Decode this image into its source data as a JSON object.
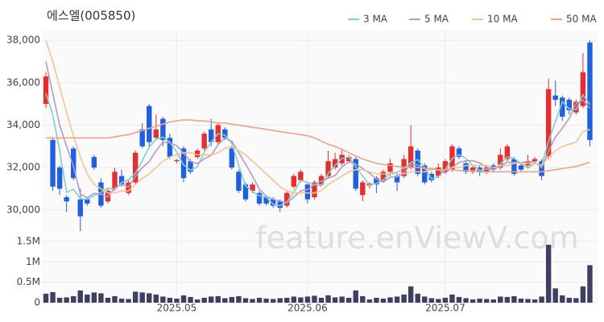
{
  "chart_data": {
    "type": "candlestick",
    "title": "에스엘(005850)",
    "watermark": "feature.enViewV.com",
    "categories": [
      null,
      null,
      null,
      null,
      null,
      null,
      null,
      null,
      null,
      null,
      null,
      null,
      null,
      null,
      null,
      null,
      null,
      null,
      null,
      "2025.05",
      null,
      null,
      null,
      null,
      null,
      null,
      null,
      null,
      null,
      null,
      null,
      null,
      null,
      null,
      null,
      null,
      null,
      null,
      "2025.06",
      null,
      null,
      null,
      null,
      null,
      null,
      null,
      null,
      null,
      null,
      null,
      null,
      null,
      null,
      null,
      null,
      null,
      null,
      null,
      "2025.07",
      null,
      null,
      null,
      null,
      null,
      null,
      null,
      null,
      null,
      null,
      null,
      null,
      null,
      null,
      null,
      null,
      null,
      null,
      null,
      null,
      null
    ],
    "open": [
      35000,
      33300,
      32000,
      30600,
      32900,
      30500,
      30500,
      32500,
      31300,
      30400,
      31000,
      31600,
      30800,
      31300,
      33800,
      34900,
      33400,
      34300,
      33400,
      32300,
      32900,
      32300,
      32500,
      32900,
      33800,
      33200,
      33800,
      32900,
      31800,
      31200,
      30900,
      30800,
      30600,
      30500,
      30400,
      30200,
      31100,
      31400,
      31200,
      30600,
      31200,
      31600,
      32000,
      32200,
      32300,
      32400,
      30700,
      31150,
      31500,
      31400,
      31800,
      31600,
      31600,
      32000,
      32800,
      32100,
      31700,
      31600,
      31800,
      31900,
      32900,
      32200,
      31800,
      32000,
      31800,
      32100,
      32000,
      32400,
      32400,
      32100,
      32100,
      32300,
      32300,
      32500,
      35400,
      35300,
      35200,
      34600,
      34900,
      37900
    ],
    "high": [
      36500,
      33400,
      32100,
      30700,
      33000,
      31000,
      30600,
      32600,
      31500,
      31000,
      32000,
      31900,
      31400,
      32800,
      34100,
      35000,
      34500,
      34400,
      33600,
      32400,
      33000,
      32400,
      32900,
      33700,
      34300,
      34100,
      33900,
      33000,
      31900,
      31300,
      31300,
      30900,
      30700,
      30600,
      30500,
      30900,
      31700,
      31900,
      31300,
      31400,
      31700,
      32800,
      32700,
      32900,
      32600,
      32500,
      31400,
      31300,
      31600,
      31900,
      32400,
      31700,
      32600,
      34000,
      32900,
      32200,
      31800,
      32200,
      32400,
      33100,
      33000,
      32300,
      32100,
      32100,
      32100,
      32200,
      32900,
      33100,
      32500,
      32200,
      32600,
      32500,
      32400,
      36200,
      36100,
      35400,
      35300,
      35200,
      37400,
      38000
    ],
    "low": [
      34800,
      30900,
      30700,
      29900,
      31400,
      29000,
      30200,
      31900,
      30100,
      30300,
      30900,
      31100,
      30700,
      31200,
      32900,
      32900,
      33300,
      33000,
      32400,
      32200,
      31300,
      31700,
      32400,
      32800,
      33000,
      33100,
      33300,
      31900,
      30800,
      30400,
      30800,
      30200,
      30200,
      30100,
      29900,
      30100,
      31000,
      31300,
      30300,
      30500,
      31100,
      31500,
      31900,
      32100,
      32200,
      30900,
      30400,
      31000,
      30800,
      31300,
      31600,
      30900,
      31500,
      31900,
      31600,
      31200,
      31300,
      31500,
      31700,
      31800,
      32400,
      31700,
      31700,
      31600,
      31700,
      31800,
      31900,
      32300,
      31600,
      31800,
      32000,
      32200,
      31400,
      32400,
      34900,
      34200,
      34500,
      34500,
      34800,
      33000
    ],
    "close": [
      36300,
      31100,
      31000,
      30400,
      31500,
      29700,
      30300,
      32000,
      30200,
      30900,
      31800,
      31200,
      31300,
      32700,
      33000,
      33200,
      33800,
      33300,
      32500,
      32350,
      31500,
      31800,
      32800,
      33600,
      33200,
      34000,
      33400,
      32000,
      30900,
      30500,
      31200,
      30300,
      30300,
      30200,
      30100,
      30800,
      31600,
      31800,
      30500,
      31300,
      31600,
      32300,
      32400,
      32600,
      32500,
      31000,
      31300,
      31250,
      31200,
      31800,
      32200,
      31300,
      32400,
      33000,
      31700,
      31300,
      31400,
      32000,
      32300,
      33000,
      32500,
      31800,
      32000,
      31800,
      32000,
      31900,
      32600,
      33000,
      31700,
      31900,
      32300,
      32400,
      31600,
      35700,
      35200,
      34400,
      34700,
      35100,
      36500,
      33300
    ],
    "up_color": "#e62e2e",
    "down_color": "#1f5fe0",
    "series": [
      {
        "name": "3 MA",
        "color": "#7fd1c7",
        "values": [
          35500,
          34500,
          32800,
          30830,
          30970,
          30530,
          30500,
          30670,
          30830,
          31030,
          30970,
          31300,
          31430,
          31730,
          32330,
          32970,
          33330,
          33430,
          33200,
          32720,
          32120,
          31880,
          32030,
          32730,
          33200,
          33600,
          33530,
          33130,
          32100,
          31130,
          30870,
          30670,
          30600,
          30270,
          30200,
          30370,
          30830,
          31400,
          31300,
          31200,
          31130,
          31730,
          32100,
          32430,
          32500,
          32030,
          31600,
          31180,
          31250,
          31420,
          31730,
          31770,
          31970,
          32230,
          32370,
          32000,
          31470,
          31570,
          31900,
          32430,
          32600,
          32430,
          32100,
          31870,
          31930,
          31900,
          32170,
          32500,
          32430,
          32200,
          31970,
          32200,
          32100,
          33230,
          34170,
          35100,
          34770,
          34730,
          35430,
          34970
        ]
      },
      {
        "name": "5 MA",
        "color": "#b39ac7",
        "values": [
          37000,
          35500,
          34000,
          33000,
          32060,
          30740,
          30580,
          30780,
          30740,
          30620,
          31040,
          31220,
          31080,
          31580,
          32000,
          32280,
          32800,
          33200,
          33160,
          33030,
          32690,
          32290,
          32190,
          32410,
          32580,
          33080,
          33400,
          33240,
          32700,
          32160,
          31600,
          30980,
          30640,
          30500,
          30420,
          30340,
          30600,
          30900,
          30960,
          31200,
          31360,
          31500,
          31620,
          32040,
          32280,
          32160,
          31960,
          31730,
          31450,
          31310,
          31550,
          31550,
          31780,
          32140,
          32120,
          31940,
          31960,
          31880,
          31740,
          32000,
          32240,
          32320,
          32320,
          32220,
          32020,
          31900,
          32060,
          32260,
          32240,
          32220,
          32300,
          32260,
          31980,
          32780,
          33440,
          33860,
          34320,
          35020,
          35180,
          34800
        ]
      },
      {
        "name": "10 MA",
        "color": "#f2c493",
        "values": [
          38000,
          37000,
          35800,
          34600,
          33500,
          32500,
          31700,
          31200,
          31000,
          30800,
          30800,
          30900,
          30900,
          31200,
          31500,
          31700,
          32000,
          32300,
          32500,
          32600,
          32700,
          32700,
          32600,
          32600,
          32600,
          32700,
          32900,
          33000,
          32800,
          32600,
          32300,
          32000,
          31700,
          31400,
          31100,
          30900,
          30800,
          30800,
          30800,
          30800,
          30900,
          31200,
          31400,
          31600,
          31800,
          31900,
          31900,
          31800,
          31700,
          31700,
          31700,
          31700,
          31700,
          31800,
          31800,
          31800,
          31900,
          31900,
          31900,
          32000,
          32000,
          32100,
          32100,
          32100,
          32100,
          32000,
          32100,
          32100,
          32200,
          32200,
          32200,
          32200,
          32100,
          32500,
          32800,
          33000,
          33100,
          33200,
          33700,
          33800
        ]
      },
      {
        "name": "50 MA",
        "color": "#f2a08c",
        "values": [
          33400,
          33400,
          33400,
          33400,
          33400,
          33400,
          33400,
          33400,
          33400,
          33400,
          33450,
          33500,
          33550,
          33650,
          33750,
          33850,
          33950,
          34050,
          34150,
          34200,
          34250,
          34250,
          34200,
          34200,
          34150,
          34100,
          34100,
          34050,
          34000,
          33950,
          33900,
          33850,
          33800,
          33750,
          33700,
          33650,
          33600,
          33550,
          33500,
          33400,
          33250,
          33100,
          33000,
          32850,
          32700,
          32550,
          32400,
          32300,
          32200,
          32150,
          32100,
          32050,
          32000,
          32000,
          32000,
          31950,
          31950,
          31900,
          31900,
          31900,
          31850,
          31850,
          31850,
          31800,
          31800,
          31800,
          31800,
          31800,
          31800,
          31800,
          31800,
          31800,
          31800,
          31850,
          31900,
          31950,
          32000,
          32050,
          32150,
          32250
        ]
      }
    ],
    "ylim": [
      28700,
      38500
    ],
    "yticks": [
      {
        "value": 30000,
        "label": "30,000"
      },
      {
        "value": 32000,
        "label": "32,000"
      },
      {
        "value": 34000,
        "label": "34,000"
      },
      {
        "value": 36000,
        "label": "36,000"
      },
      {
        "value": 38000,
        "label": "38,000"
      }
    ],
    "grid": true,
    "volume": {
      "color": "#3d4063",
      "values": [
        220000,
        260000,
        120000,
        130000,
        160000,
        300000,
        200000,
        250000,
        230000,
        120000,
        160000,
        100000,
        90000,
        270000,
        250000,
        230000,
        200000,
        150000,
        120000,
        100000,
        180000,
        140000,
        80000,
        120000,
        150000,
        160000,
        110000,
        140000,
        160000,
        110000,
        90000,
        120000,
        100000,
        90000,
        110000,
        120000,
        150000,
        130000,
        150000,
        170000,
        120000,
        180000,
        130000,
        150000,
        120000,
        300000,
        160000,
        80000,
        120000,
        100000,
        130000,
        150000,
        200000,
        400000,
        220000,
        150000,
        110000,
        90000,
        120000,
        200000,
        140000,
        110000,
        80000,
        100000,
        90000,
        80000,
        150000,
        140000,
        160000,
        100000,
        90000,
        80000,
        150000,
        1420000,
        350000,
        180000,
        120000,
        110000,
        400000,
        920000
      ],
      "ylim": [
        0,
        1500000
      ],
      "yticks": [
        0,
        {
          "value": 500000,
          "label": "0.5M"
        },
        {
          "value": 1000000,
          "label": "1M"
        },
        {
          "value": 1500000,
          "label": "1.5M"
        }
      ]
    }
  }
}
